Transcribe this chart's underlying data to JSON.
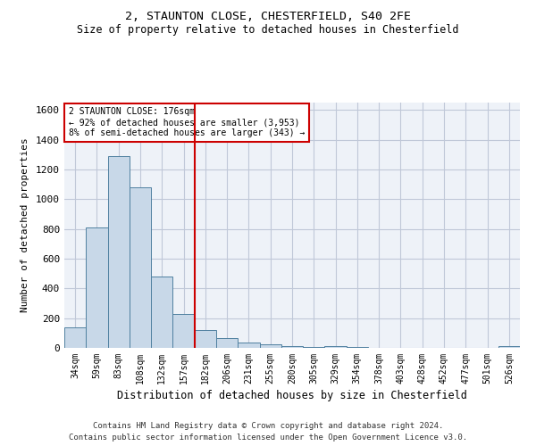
{
  "title1": "2, STAUNTON CLOSE, CHESTERFIELD, S40 2FE",
  "title2": "Size of property relative to detached houses in Chesterfield",
  "xlabel": "Distribution of detached houses by size in Chesterfield",
  "ylabel": "Number of detached properties",
  "footer1": "Contains HM Land Registry data © Crown copyright and database right 2024.",
  "footer2": "Contains public sector information licensed under the Open Government Licence v3.0.",
  "annotation_line1": "2 STAUNTON CLOSE: 176sqm",
  "annotation_line2": "← 92% of detached houses are smaller (3,953)",
  "annotation_line3": "8% of semi-detached houses are larger (343) →",
  "bar_color": "#c8d8e8",
  "bar_edge_color": "#5080a0",
  "vline_color": "#cc0000",
  "categories": [
    "34sqm",
    "59sqm",
    "83sqm",
    "108sqm",
    "132sqm",
    "157sqm",
    "182sqm",
    "206sqm",
    "231sqm",
    "255sqm",
    "280sqm",
    "305sqm",
    "329sqm",
    "354sqm",
    "378sqm",
    "403sqm",
    "428sqm",
    "452sqm",
    "477sqm",
    "501sqm",
    "526sqm"
  ],
  "values": [
    140,
    810,
    1290,
    1080,
    480,
    230,
    120,
    65,
    35,
    22,
    15,
    8,
    10,
    5,
    2,
    2,
    2,
    2,
    2,
    2,
    12
  ],
  "ylim": [
    0,
    1650
  ],
  "yticks": [
    0,
    200,
    400,
    600,
    800,
    1000,
    1200,
    1400,
    1600
  ],
  "grid_color": "#c0c8d8",
  "bg_color": "#eef2f8"
}
